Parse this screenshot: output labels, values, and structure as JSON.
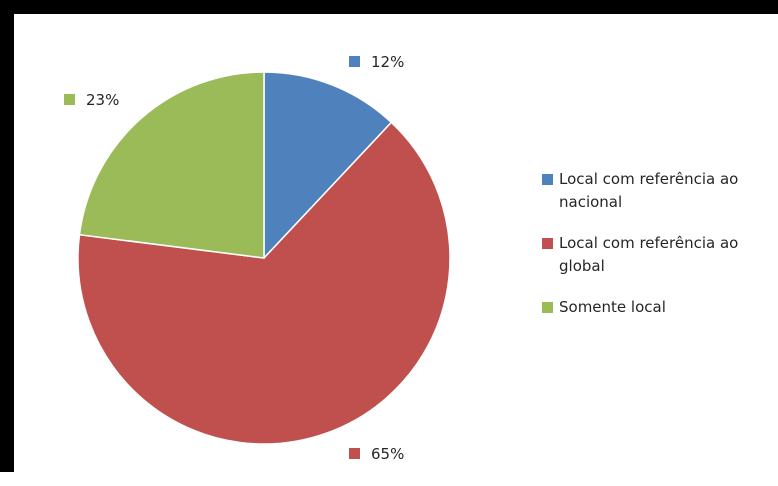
{
  "chart_data": {
    "type": "pie",
    "title": "",
    "start_angle_deg": 0,
    "legend_position": "right",
    "slices": [
      {
        "label": "Local com referência ao nacional",
        "value": 12,
        "value_label": "12%",
        "color": "#4f81bd"
      },
      {
        "label": "Local com referência ao global",
        "value": 65,
        "value_label": "65%",
        "color": "#c0504d"
      },
      {
        "label": "Somente local",
        "value": 23,
        "value_label": "23%",
        "color": "#9bbb59"
      }
    ]
  }
}
